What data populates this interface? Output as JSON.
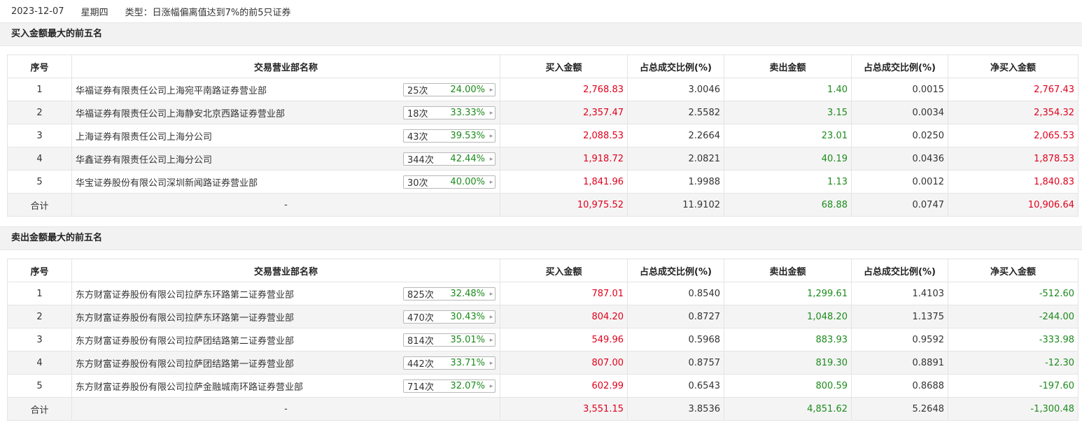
{
  "header": {
    "date": "2023-12-07",
    "weekday": "星期四",
    "type_label": "类型：日涨幅偏离值达到7%的前5只证券"
  },
  "colors": {
    "positive": "#e1001c",
    "negative": "#1d8b1d"
  },
  "columns": [
    "序号",
    "交易营业部名称",
    "买入金额",
    "占总成交比例(%)",
    "卖出金额",
    "占总成交比例(%)",
    "净买入金额"
  ],
  "buy_section": {
    "title": "买入金额最大的前五名",
    "rows": [
      {
        "idx": "1",
        "name": "华福证券有限责任公司上海宛平南路证券营业部",
        "count": "25次",
        "rate": "24.00%",
        "buy": "2,768.83",
        "buy_pct": "3.0046",
        "sell": "1.40",
        "sell_pct": "0.0015",
        "net": "2,767.43"
      },
      {
        "idx": "2",
        "name": "华福证券有限责任公司上海静安北京西路证券营业部",
        "count": "18次",
        "rate": "33.33%",
        "buy": "2,357.47",
        "buy_pct": "2.5582",
        "sell": "3.15",
        "sell_pct": "0.0034",
        "net": "2,354.32"
      },
      {
        "idx": "3",
        "name": "上海证券有限责任公司上海分公司",
        "count": "43次",
        "rate": "39.53%",
        "buy": "2,088.53",
        "buy_pct": "2.2664",
        "sell": "23.01",
        "sell_pct": "0.0250",
        "net": "2,065.53"
      },
      {
        "idx": "4",
        "name": "华鑫证券有限责任公司上海分公司",
        "count": "344次",
        "rate": "42.44%",
        "buy": "1,918.72",
        "buy_pct": "2.0821",
        "sell": "40.19",
        "sell_pct": "0.0436",
        "net": "1,878.53"
      },
      {
        "idx": "5",
        "name": "华宝证券股份有限公司深圳新闻路证券营业部",
        "count": "30次",
        "rate": "40.00%",
        "buy": "1,841.96",
        "buy_pct": "1.9988",
        "sell": "1.13",
        "sell_pct": "0.0012",
        "net": "1,840.83"
      }
    ],
    "total": {
      "label": "合计",
      "name": "-",
      "buy": "10,975.52",
      "buy_pct": "11.9102",
      "sell": "68.88",
      "sell_pct": "0.0747",
      "net": "10,906.64"
    }
  },
  "sell_section": {
    "title": "卖出金额最大的前五名",
    "rows": [
      {
        "idx": "1",
        "name": "东方财富证券股份有限公司拉萨东环路第二证券营业部",
        "count": "825次",
        "rate": "32.48%",
        "buy": "787.01",
        "buy_pct": "0.8540",
        "sell": "1,299.61",
        "sell_pct": "1.4103",
        "net": "-512.60"
      },
      {
        "idx": "2",
        "name": "东方财富证券股份有限公司拉萨东环路第一证券营业部",
        "count": "470次",
        "rate": "30.43%",
        "buy": "804.20",
        "buy_pct": "0.8727",
        "sell": "1,048.20",
        "sell_pct": "1.1375",
        "net": "-244.00"
      },
      {
        "idx": "3",
        "name": "东方财富证券股份有限公司拉萨团结路第二证券营业部",
        "count": "814次",
        "rate": "35.01%",
        "buy": "549.96",
        "buy_pct": "0.5968",
        "sell": "883.93",
        "sell_pct": "0.9592",
        "net": "-333.98"
      },
      {
        "idx": "4",
        "name": "东方财富证券股份有限公司拉萨团结路第一证券营业部",
        "count": "442次",
        "rate": "33.71%",
        "buy": "807.00",
        "buy_pct": "0.8757",
        "sell": "819.30",
        "sell_pct": "0.8891",
        "net": "-12.30"
      },
      {
        "idx": "5",
        "name": "东方财富证券股份有限公司拉萨金融城南环路证券营业部",
        "count": "714次",
        "rate": "32.07%",
        "buy": "602.99",
        "buy_pct": "0.6543",
        "sell": "800.59",
        "sell_pct": "0.8688",
        "net": "-197.60"
      }
    ],
    "total": {
      "label": "合计",
      "name": "-",
      "buy": "3,551.15",
      "buy_pct": "3.8536",
      "sell": "4,851.62",
      "sell_pct": "5.2648",
      "net": "-1,300.48"
    }
  }
}
